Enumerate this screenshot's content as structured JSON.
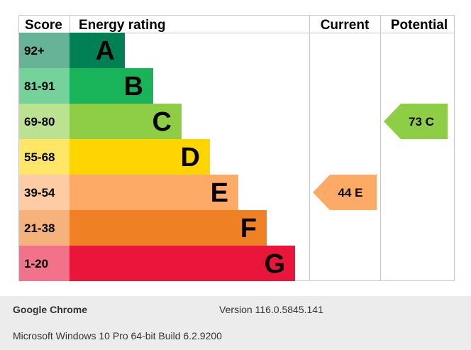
{
  "headers": {
    "score": "Score",
    "rating": "Energy rating",
    "current": "Current",
    "potential": "Potential"
  },
  "bands": [
    {
      "score": "92+",
      "letter": "A",
      "color": "#008054",
      "score_bg": "#66b398"
    },
    {
      "score": "81-91",
      "letter": "B",
      "color": "#19b459",
      "score_bg": "#75d29b"
    },
    {
      "score": "69-80",
      "letter": "C",
      "color": "#8dce46",
      "score_bg": "#bbe290"
    },
    {
      "score": "55-68",
      "letter": "D",
      "color": "#ffd500",
      "score_bg": "#ffe666"
    },
    {
      "score": "39-54",
      "letter": "E",
      "color": "#fcaa65",
      "score_bg": "#fdcca3"
    },
    {
      "score": "21-38",
      "letter": "F",
      "color": "#ef8023",
      "score_bg": "#f5b37b"
    },
    {
      "score": "1-20",
      "letter": "G",
      "color": "#e9153b",
      "score_bg": "#f27389"
    }
  ],
  "current": {
    "label": "44 E",
    "band": "E",
    "color": "#fcaa65"
  },
  "potential": {
    "label": "73 C",
    "band": "C",
    "color": "#8dce46"
  },
  "footer": {
    "browser": "Google Chrome",
    "version": "Version 116.0.5845.141",
    "os": "Microsoft Windows 10 Pro 64-bit Build 6.2.9200"
  }
}
